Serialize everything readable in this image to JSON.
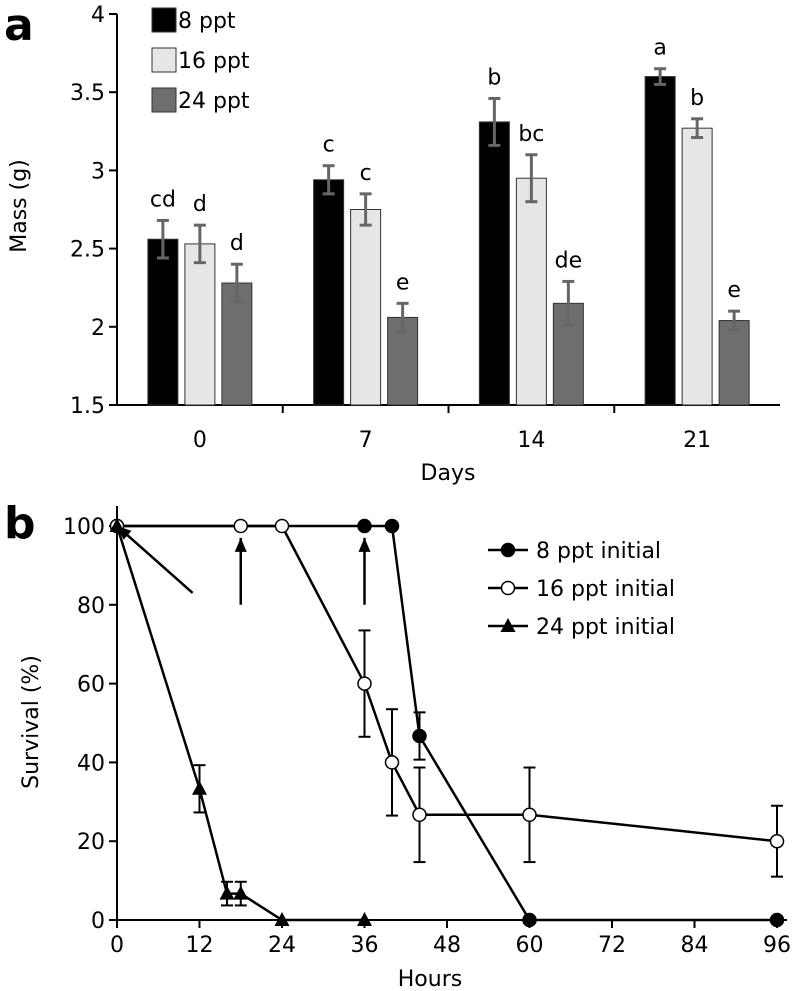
{
  "chart_data": [
    {
      "panel_label": "a",
      "type": "bar",
      "xlabel": "Days",
      "ylabel": "Mass (g)",
      "ylim": [
        1.5,
        4
      ],
      "yticks": [
        1.5,
        2,
        2.5,
        3,
        3.5,
        4
      ],
      "ytick_labels": [
        "1.5",
        "2",
        "2.5",
        "3",
        "3.5",
        "4"
      ],
      "categories": [
        "0",
        "7",
        "14",
        "21"
      ],
      "legend_position": "top-left",
      "colors": [
        "#000000",
        "#e6e6e6",
        "#6e6e6e"
      ],
      "series": [
        {
          "name": "8 ppt",
          "values": [
            2.56,
            2.94,
            3.31,
            3.6
          ],
          "errors": [
            0.12,
            0.09,
            0.15,
            0.05
          ],
          "letters": [
            "cd",
            "c",
            "b",
            "a"
          ]
        },
        {
          "name": "16 ppt",
          "values": [
            2.53,
            2.75,
            2.95,
            3.27
          ],
          "errors": [
            0.12,
            0.1,
            0.15,
            0.06
          ],
          "letters": [
            "d",
            "c",
            "bc",
            "b"
          ]
        },
        {
          "name": "24 ppt",
          "values": [
            2.28,
            2.06,
            2.15,
            2.04
          ],
          "errors": [
            0.12,
            0.09,
            0.14,
            0.06
          ],
          "letters": [
            "d",
            "e",
            "de",
            "e"
          ]
        }
      ]
    },
    {
      "panel_label": "b",
      "type": "line",
      "xlabel": "Hours",
      "ylabel": "Survival (%)",
      "xlim": [
        0,
        96
      ],
      "ylim": [
        0,
        100
      ],
      "xticks": [
        0,
        12,
        24,
        36,
        48,
        60,
        72,
        84,
        96
      ],
      "xtick_labels": [
        "0",
        "12",
        "24",
        "36",
        "48",
        "60",
        "72",
        "84",
        "96"
      ],
      "yticks": [
        0,
        20,
        40,
        60,
        80,
        100
      ],
      "ytick_labels": [
        "0",
        "20",
        "40",
        "60",
        "80",
        "100"
      ],
      "legend_position": "top-right",
      "series": [
        {
          "name": "8 ppt initial",
          "marker": "filled-circle",
          "x": [
            0,
            36,
            40,
            44,
            60,
            96
          ],
          "y": [
            100,
            100,
            100,
            46.7,
            0,
            0
          ],
          "errors": [
            0,
            0,
            0,
            6,
            0,
            0
          ]
        },
        {
          "name": "16 ppt initial",
          "marker": "open-circle",
          "x": [
            0,
            18,
            24,
            36,
            40,
            44,
            60,
            96
          ],
          "y": [
            100,
            100,
            100,
            60,
            40,
            26.7,
            26.7,
            20
          ],
          "errors": [
            0,
            0,
            0,
            13.5,
            13.5,
            12,
            12,
            9
          ]
        },
        {
          "name": "24 ppt initial",
          "marker": "filled-triangle",
          "x": [
            0,
            12,
            16,
            18,
            24,
            36
          ],
          "y": [
            100,
            33.3,
            6.7,
            6.7,
            0,
            0
          ],
          "errors": [
            0,
            6,
            3,
            3,
            0,
            0
          ]
        }
      ],
      "arrows": [
        {
          "tip_x": 0,
          "tip_y": 100,
          "tail_x": 11,
          "tail_y": 83
        },
        {
          "tip_x": 18,
          "tip_y": 97,
          "tail_x": 18,
          "tail_y": 80
        },
        {
          "tip_x": 36,
          "tip_y": 97,
          "tail_x": 36,
          "tail_y": 80
        }
      ]
    }
  ]
}
